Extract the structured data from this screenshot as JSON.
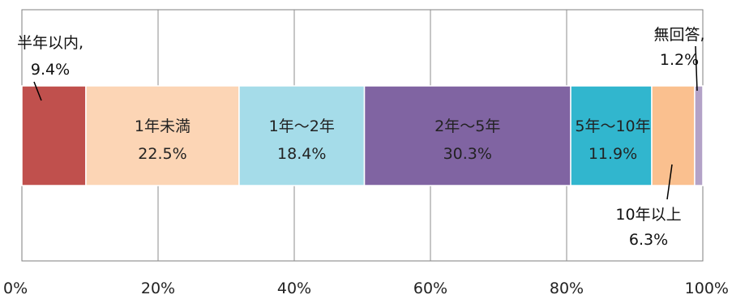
{
  "chart_data": {
    "type": "bar",
    "orientation": "horizontal",
    "stacked_percent": true,
    "xlim": [
      0,
      100
    ],
    "x_ticks": [
      "0%",
      "20%",
      "40%",
      "60%",
      "80%",
      "100%"
    ],
    "grid": true,
    "legend": "none",
    "series": [
      {
        "name": "半年以内",
        "value": 9.4,
        "label_line1": "半年以内,",
        "label_line2": "9.4%",
        "color": "#c0504d"
      },
      {
        "name": "1年未満",
        "value": 22.5,
        "label_line1": "1年未満",
        "label_line2": "22.5%",
        "color": "#fcd5b5"
      },
      {
        "name": "1年～2年",
        "value": 18.4,
        "label_line1": "1年～2年",
        "label_line2": "18.4%",
        "color": "#a5dce9"
      },
      {
        "name": "2年～5年",
        "value": 30.3,
        "label_line1": "2年～5年",
        "label_line2": "30.3%",
        "color": "#8064a2"
      },
      {
        "name": "5年～10年",
        "value": 11.9,
        "label_line1": "5年～10年",
        "label_line2": "11.9%",
        "color": "#31b6ce"
      },
      {
        "name": "10年以上",
        "value": 6.3,
        "label_line1": "10年以上",
        "label_line2": "6.3%",
        "color": "#fac08f"
      },
      {
        "name": "無回答",
        "value": 1.2,
        "label_line1": "無回答,",
        "label_line2": "1.2%",
        "color": "#b3a2c7"
      }
    ]
  }
}
